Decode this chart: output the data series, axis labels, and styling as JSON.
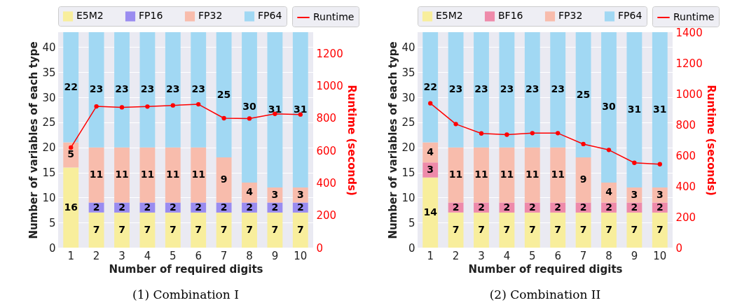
{
  "chart_data": [
    {
      "type": "bar",
      "stacked": true,
      "categories": [
        "1",
        "2",
        "3",
        "4",
        "5",
        "6",
        "7",
        "8",
        "9",
        "10"
      ],
      "xlabel": "Number of required digits",
      "ylabel": "Number of variables of each type",
      "y2label": "Runtime (seconds)",
      "ylim": [
        0,
        43
      ],
      "yticks": [
        0,
        5,
        10,
        15,
        20,
        25,
        30,
        35,
        40
      ],
      "y2lim": [
        0,
        1330
      ],
      "y2ticks": [
        0,
        200,
        400,
        600,
        800,
        1000,
        1200
      ],
      "grid": "y",
      "legend": "top",
      "annotations": [
        "(1) Combination I"
      ],
      "series": [
        {
          "name": "E5M2",
          "color": "#f8ee9c",
          "values": [
            16,
            7,
            7,
            7,
            7,
            7,
            7,
            7,
            7,
            7
          ],
          "value_labels": [
            "16",
            "7",
            "7",
            "7",
            "7",
            "7",
            "7",
            "7",
            "7",
            "7"
          ]
        },
        {
          "name": "FP16",
          "color": "#9a8cf0",
          "values": [
            null,
            2,
            2,
            2,
            2,
            2,
            2,
            2,
            2,
            2
          ],
          "value_labels": [
            null,
            "2",
            "2",
            "2",
            "2",
            "2",
            "2",
            "2",
            "2",
            "2"
          ]
        },
        {
          "name": "FP32",
          "color": "#f8bcac",
          "values": [
            5,
            11,
            11,
            11,
            11,
            11,
            9,
            4,
            3,
            3
          ],
          "value_labels": [
            "5",
            "11",
            "11",
            "11",
            "11",
            "11",
            "9",
            "4",
            "3",
            "3"
          ]
        },
        {
          "name": "FP64",
          "color": "#a1d8f3",
          "values": [
            22,
            23,
            23,
            23,
            23,
            23,
            25,
            30,
            31,
            31
          ],
          "value_labels": [
            "22",
            "23",
            "23",
            "23",
            "23",
            "23",
            "25",
            "30",
            "31",
            "31"
          ]
        },
        {
          "name": "Runtime",
          "color": "#ff0000",
          "type": "line",
          "axis": "y2",
          "marker": "circle",
          "values": [
            618,
            872,
            866,
            871,
            878,
            885,
            799,
            797,
            826,
            822
          ]
        }
      ]
    },
    {
      "type": "bar",
      "stacked": true,
      "categories": [
        "1",
        "2",
        "3",
        "4",
        "5",
        "6",
        "7",
        "8",
        "9",
        "10"
      ],
      "xlabel": "Number of required digits",
      "ylabel": "Number of variables of each type",
      "y2label": "Runtime (seconds)",
      "ylim": [
        0,
        43
      ],
      "yticks": [
        0,
        5,
        10,
        15,
        20,
        25,
        30,
        35,
        40
      ],
      "y2lim": [
        0,
        1400
      ],
      "y2ticks": [
        0,
        200,
        400,
        600,
        800,
        1000,
        1200,
        1400
      ],
      "grid": "y",
      "legend": "top",
      "annotations": [
        "(2) Combination II"
      ],
      "series": [
        {
          "name": "E5M2",
          "color": "#f8ee9c",
          "values": [
            14,
            7,
            7,
            7,
            7,
            7,
            7,
            7,
            7,
            7
          ],
          "value_labels": [
            "14",
            "7",
            "7",
            "7",
            "7",
            "7",
            "7",
            "7",
            "7",
            "7"
          ]
        },
        {
          "name": "BF16",
          "color": "#ee8aaa",
          "values": [
            3,
            2,
            2,
            2,
            2,
            2,
            2,
            2,
            2,
            2
          ],
          "value_labels": [
            "3",
            "2",
            "2",
            "2",
            "2",
            "2",
            "2",
            "2",
            "2",
            "2"
          ]
        },
        {
          "name": "FP32",
          "color": "#f8bcac",
          "values": [
            4,
            11,
            11,
            11,
            11,
            11,
            9,
            4,
            3,
            3
          ],
          "value_labels": [
            "4",
            "11",
            "11",
            "11",
            "11",
            "11",
            "9",
            "4",
            "3",
            "3"
          ]
        },
        {
          "name": "FP64",
          "color": "#a1d8f3",
          "values": [
            22,
            23,
            23,
            23,
            23,
            23,
            25,
            30,
            31,
            31
          ],
          "value_labels": [
            "22",
            "23",
            "23",
            "23",
            "23",
            "23",
            "25",
            "30",
            "31",
            "31"
          ]
        },
        {
          "name": "Runtime",
          "color": "#ff0000",
          "type": "line",
          "axis": "y2",
          "marker": "circle",
          "values": [
            938,
            803,
            742,
            734,
            744,
            744,
            673,
            635,
            551,
            542
          ]
        }
      ]
    }
  ]
}
